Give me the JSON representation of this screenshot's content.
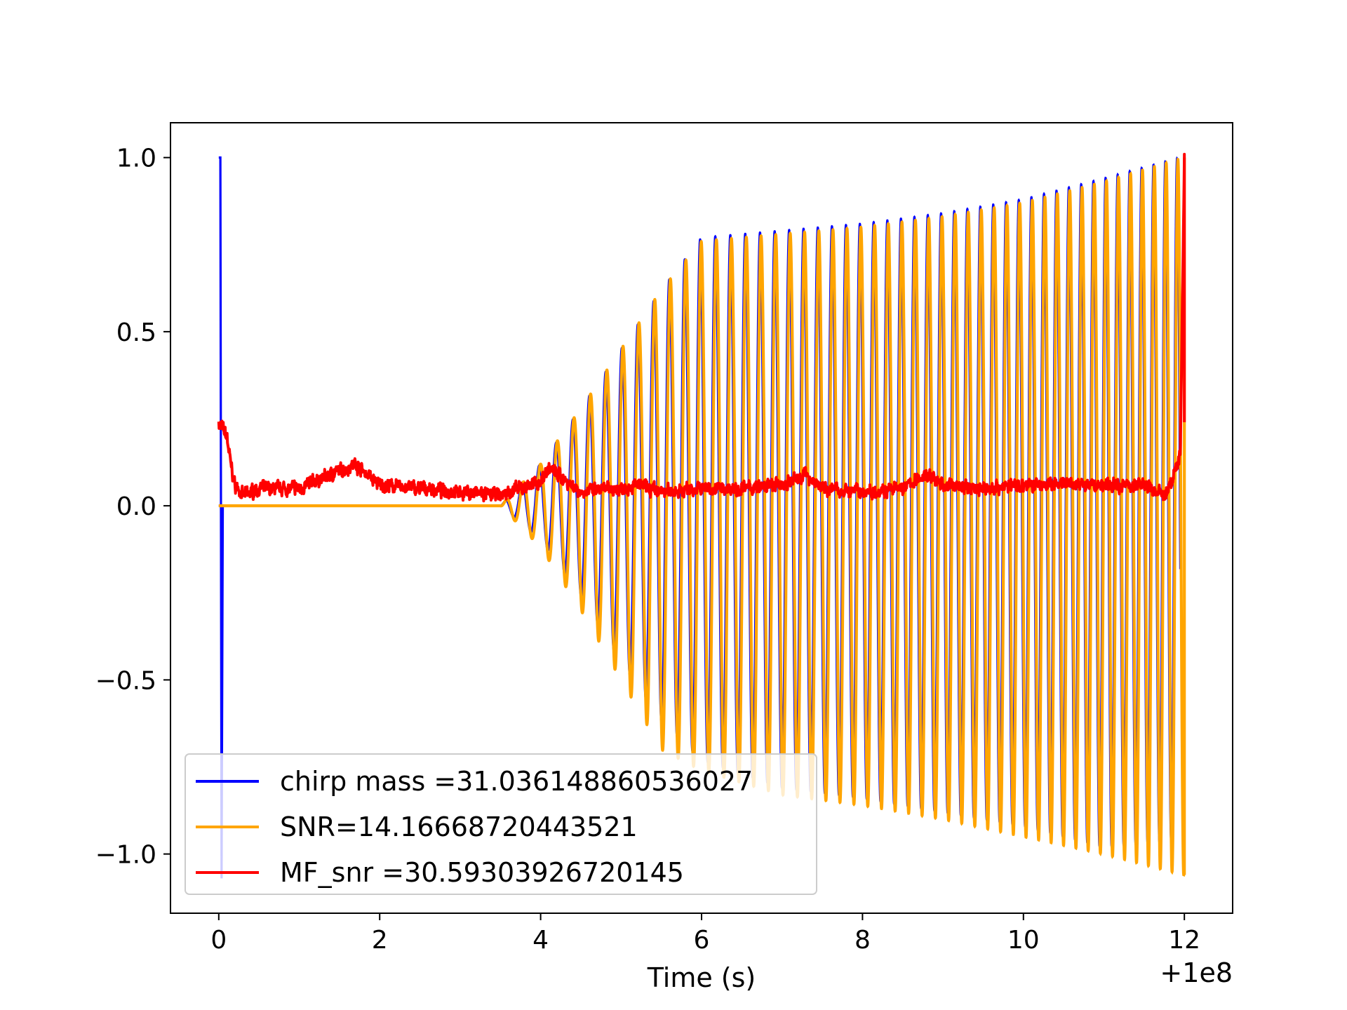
{
  "chart_data": {
    "type": "line",
    "xlabel": "Time (s)",
    "ylabel": "",
    "x_offset_label": "+1e8",
    "xlim": [
      -0.6,
      12.6
    ],
    "ylim": [
      -1.17,
      1.1
    ],
    "x_ticks": [
      0,
      2,
      4,
      6,
      8,
      10,
      12
    ],
    "x_tick_labels": [
      "0",
      "2",
      "4",
      "6",
      "8",
      "10",
      "12"
    ],
    "y_ticks": [
      1.0,
      0.5,
      0.0,
      -0.5,
      -1.0
    ],
    "y_tick_labels": [
      "1.0",
      "0.5",
      "0.0",
      "−0.5",
      "−1.0"
    ],
    "grid": false,
    "legend_position": "lower-left",
    "series": [
      {
        "name": "chirp mass =31.036148860536027",
        "color": "#0000ff",
        "description": "chirp waveform; initial spike at x=0 from 1.0 to -1.07, then oscillations whose amplitude grows from 0 near x=3.5 to about 0.77 at x=6 and about 1.0 at x=12",
        "envelope_x": [
          3.5,
          4.0,
          4.5,
          5.0,
          5.5,
          6.0,
          7.0,
          8.0,
          9.0,
          10.0,
          11.0,
          11.95
        ],
        "envelope_upper": [
          0.0,
          0.12,
          0.28,
          0.45,
          0.62,
          0.77,
          0.79,
          0.81,
          0.84,
          0.88,
          0.94,
          1.0
        ],
        "envelope_lower": [
          0.0,
          -0.1,
          -0.26,
          -0.45,
          -0.62,
          -0.73,
          -0.81,
          -0.84,
          -0.88,
          -0.92,
          -0.98,
          -0.96
        ]
      },
      {
        "name": "SNR=14.16668720443521",
        "color": "#ffa500",
        "description": "zero until x=3.5, then oscillation with same envelope as chirp, slightly phase shifted, ending near -1.06 at x=12",
        "envelope_x": [
          3.5,
          4.0,
          4.5,
          5.0,
          5.5,
          6.0,
          7.0,
          8.0,
          9.0,
          10.0,
          11.0,
          12.0
        ],
        "envelope_upper": [
          0.0,
          0.12,
          0.28,
          0.45,
          0.62,
          0.76,
          0.78,
          0.8,
          0.83,
          0.87,
          0.93,
          1.0
        ],
        "envelope_lower": [
          0.0,
          -0.12,
          -0.3,
          -0.5,
          -0.7,
          -0.76,
          -0.83,
          -0.86,
          -0.9,
          -0.95,
          -1.0,
          -1.06
        ]
      },
      {
        "name": "MF_snr =30.59303926720145",
        "color": "#ff0000",
        "description": "noisy positive trace",
        "x": [
          0.0,
          0.05,
          0.1,
          0.15,
          0.2,
          0.3,
          0.5,
          1.0,
          1.3,
          1.7,
          1.8,
          2.0,
          2.5,
          3.0,
          3.5,
          4.0,
          4.1,
          4.5,
          5.0,
          5.2,
          5.5,
          6.0,
          6.5,
          7.0,
          7.3,
          7.5,
          8.0,
          8.5,
          8.8,
          9.0,
          9.5,
          10.0,
          10.5,
          11.0,
          11.5,
          11.75,
          11.85,
          11.95,
          12.0
        ],
        "values": [
          0.24,
          0.22,
          0.2,
          0.12,
          0.06,
          0.03,
          0.05,
          0.05,
          0.08,
          0.12,
          0.1,
          0.06,
          0.05,
          0.04,
          0.03,
          0.07,
          0.11,
          0.04,
          0.05,
          0.06,
          0.04,
          0.05,
          0.05,
          0.06,
          0.09,
          0.05,
          0.04,
          0.05,
          0.09,
          0.06,
          0.05,
          0.06,
          0.06,
          0.06,
          0.06,
          0.03,
          0.07,
          0.15,
          1.0
        ]
      }
    ]
  }
}
